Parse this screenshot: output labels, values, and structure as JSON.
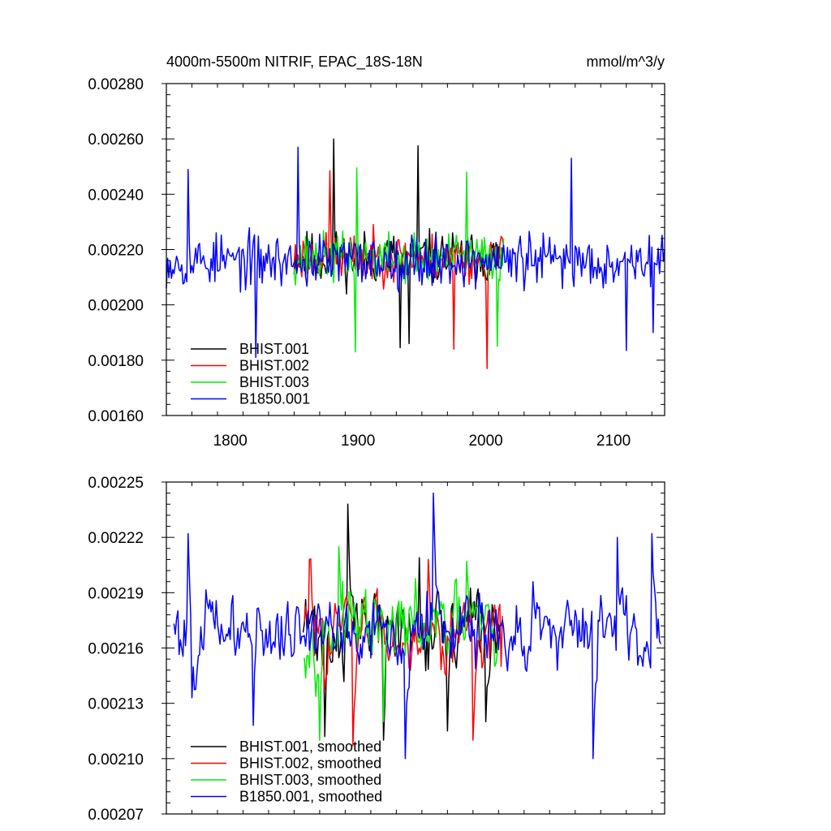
{
  "chart_data": [
    {
      "type": "line",
      "title": "4000m-5500m NITRIF, EPAC_18S-18N",
      "units": "mmol/m^3/y",
      "xlabel": "",
      "ylabel": "",
      "xlim": [
        1750,
        2140
      ],
      "ylim": [
        0.0016,
        0.0028
      ],
      "xticks": [
        1800,
        1900,
        2000,
        2100
      ],
      "xtick_labels": [
        "1800",
        "1900",
        "2000",
        "2100"
      ],
      "yticks": [
        0.0016,
        0.0018,
        0.002,
        0.0022,
        0.0024,
        0.0026,
        0.0028
      ],
      "ytick_labels": [
        "0.00160",
        "0.00180",
        "0.00200",
        "0.00220",
        "0.00240",
        "0.00260",
        "0.00280"
      ],
      "legend_position": "bottom-left",
      "series": [
        {
          "name": "BHIST.001",
          "color": "#000000",
          "x_start": 1850,
          "x_end": 2014,
          "mean": 0.00217,
          "amplitude": 0.00011,
          "seed": 11,
          "peaks": [
            [
              1881,
              0.0026
            ],
            [
              1947,
              0.002575
            ],
            [
              1933,
              0.001845
            ],
            [
              1940,
              0.00186
            ]
          ]
        },
        {
          "name": "BHIST.002",
          "color": "#ff0000",
          "x_start": 1850,
          "x_end": 2014,
          "mean": 0.00217,
          "amplitude": 0.0001,
          "seed": 23,
          "peaks": [
            [
              1878,
              0.002485
            ],
            [
              2001,
              0.00177
            ],
            [
              1975,
              0.00184
            ]
          ]
        },
        {
          "name": "BHIST.003",
          "color": "#00ee00",
          "x_start": 1850,
          "x_end": 2014,
          "mean": 0.00217,
          "amplitude": 0.0001,
          "seed": 37,
          "peaks": [
            [
              1899,
              0.002495
            ],
            [
              1898,
              0.00183
            ],
            [
              1985,
              0.00248
            ],
            [
              2009,
              0.00185
            ]
          ]
        },
        {
          "name": "B1850.001",
          "color": "#0000ff",
          "x_start": 1750,
          "x_end": 2140,
          "mean": 0.00216,
          "amplitude": 0.00011,
          "seed": 53,
          "peaks": [
            [
              1853,
              0.00257
            ],
            [
              1767,
              0.00249
            ],
            [
              1820,
              0.00181
            ],
            [
              2067,
              0.00253
            ],
            [
              2110,
              0.001835
            ],
            [
              2131,
              0.0019
            ]
          ]
        }
      ]
    },
    {
      "type": "line",
      "title": "",
      "xlabel": "",
      "ylabel": "",
      "xlim": [
        1750,
        2140
      ],
      "ylim": [
        0.00207,
        0.00225
      ],
      "xticks": [
        1800,
        1900,
        2000,
        2100
      ],
      "yticks": [
        0.00207,
        0.0021,
        0.00213,
        0.00216,
        0.00219,
        0.00222,
        0.00225
      ],
      "ytick_labels": [
        "0.00207",
        "0.00210",
        "0.00213",
        "0.00216",
        "0.00219",
        "0.00222",
        "0.00225"
      ],
      "legend_position": "bottom-left",
      "series": [
        {
          "name": "BHIST.001, smoothed",
          "color": "#000000",
          "x_start": 1857,
          "x_end": 2011,
          "mean": 0.00217,
          "amplitude": 4e-05,
          "seed": 71,
          "peaks": [
            [
              1874,
              0.002112
            ],
            [
              1892,
              0.002238
            ],
            [
              1920,
              0.00211
            ],
            [
              1948,
              0.002209
            ],
            [
              1970,
              0.002115
            ],
            [
              2000,
              0.00212
            ]
          ]
        },
        {
          "name": "BHIST.002, smoothed",
          "color": "#ff0000",
          "x_start": 1858,
          "x_end": 2013,
          "mean": 0.00217,
          "amplitude": 3.5e-05,
          "seed": 83,
          "peaks": [
            [
              1862,
              0.002208
            ],
            [
              1896,
              0.002107
            ],
            [
              1955,
              0.002208
            ],
            [
              1990,
              0.00211
            ],
            [
              2012,
              0.00215
            ]
          ]
        },
        {
          "name": "BHIST.003, smoothed",
          "color": "#00ee00",
          "x_start": 1858,
          "x_end": 2011,
          "mean": 0.00217,
          "amplitude": 3.5e-05,
          "seed": 97,
          "peaks": [
            [
              1870,
              0.00211
            ],
            [
              1885,
              0.002215
            ],
            [
              1920,
              0.00212
            ],
            [
              1985,
              0.002207
            ],
            [
              2007,
              0.00215
            ]
          ]
        },
        {
          "name": "B1850.001, smoothed",
          "color": "#0000ff",
          "x_start": 1756,
          "x_end": 2137,
          "mean": 0.00217,
          "amplitude": 3.5e-05,
          "seed": 101,
          "peaks": [
            [
              1767,
              0.002222
            ],
            [
              1770,
              0.002133
            ],
            [
              1818,
              0.002118
            ],
            [
              1937,
              0.0021
            ],
            [
              1959,
              0.002244
            ],
            [
              2084,
              0.0021
            ],
            [
              2103,
              0.00222
            ],
            [
              2130,
              0.002222
            ]
          ]
        }
      ]
    }
  ]
}
